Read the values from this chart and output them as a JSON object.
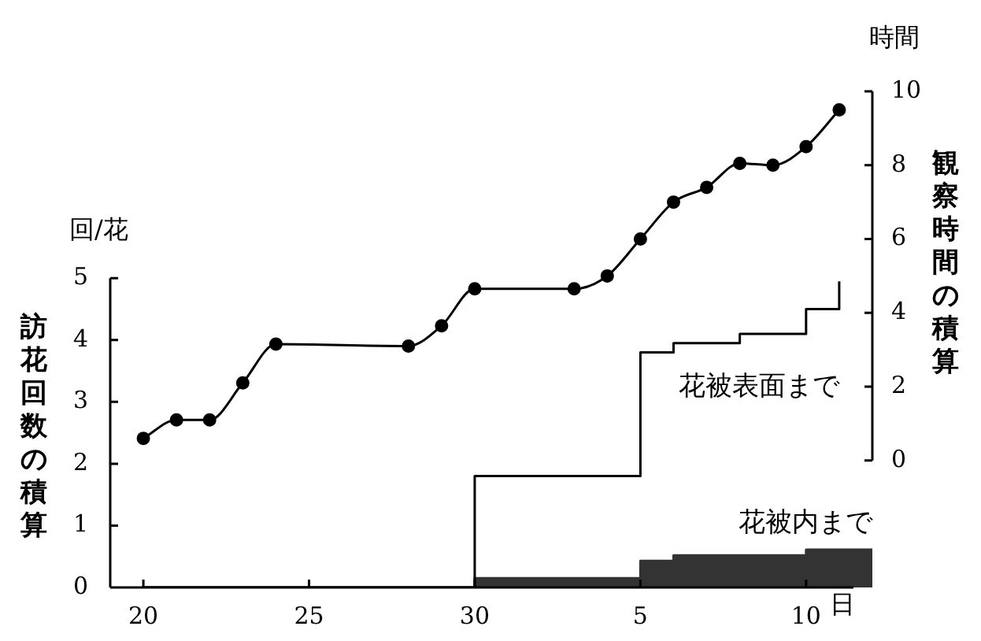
{
  "chart_data": {
    "type": "line",
    "xlabel": "日",
    "ylabel": "訪花回数の積算",
    "y2label": "観察時間の積算",
    "annotations": [
      "回/花",
      "時間"
    ],
    "categories": [
      null,
      "20",
      null,
      null,
      null,
      null,
      "25",
      null,
      null,
      null,
      null,
      "30",
      null,
      null,
      null,
      null,
      "5",
      null,
      null,
      null,
      null,
      "10",
      null,
      null
    ],
    "ylim": [
      0,
      8.02
    ],
    "yticks": [
      0,
      1,
      2,
      3,
      4,
      5
    ],
    "y2lim": [
      -3.44,
      10
    ],
    "y2ticks": [
      0,
      2,
      4,
      6,
      8,
      10
    ],
    "legend": false,
    "grid": false,
    "series": [
      {
        "axis": "y2",
        "color": "#000000",
        "marker": "circle",
        "values": [
          null,
          0.6,
          1.1,
          1.1,
          2.1,
          3.15,
          null,
          null,
          null,
          3.1,
          3.65,
          4.65,
          null,
          null,
          4.65,
          5.0,
          6.0,
          7.0,
          7.4,
          8.05,
          8.0,
          8.5,
          9.5,
          null
        ]
      },
      {
        "type": "step",
        "name": "花被表面まで",
        "color": "#000000",
        "values": [
          null,
          0,
          0,
          0,
          0,
          0,
          0,
          0,
          0,
          0,
          0,
          1.8,
          1.8,
          1.8,
          1.8,
          1.8,
          3.8,
          3.95,
          3.95,
          4.1,
          4.1,
          4.5,
          4.95,
          null
        ]
      },
      {
        "type": "area",
        "name": "花被内まで",
        "color": "#333333",
        "values": [
          null,
          0,
          0,
          0,
          0,
          0,
          0,
          0,
          0,
          0,
          0,
          0.15,
          0.15,
          0.15,
          0.15,
          0.15,
          0.43,
          0.52,
          0.52,
          0.52,
          0.52,
          0.61,
          0.61,
          0.61
        ]
      }
    ]
  }
}
